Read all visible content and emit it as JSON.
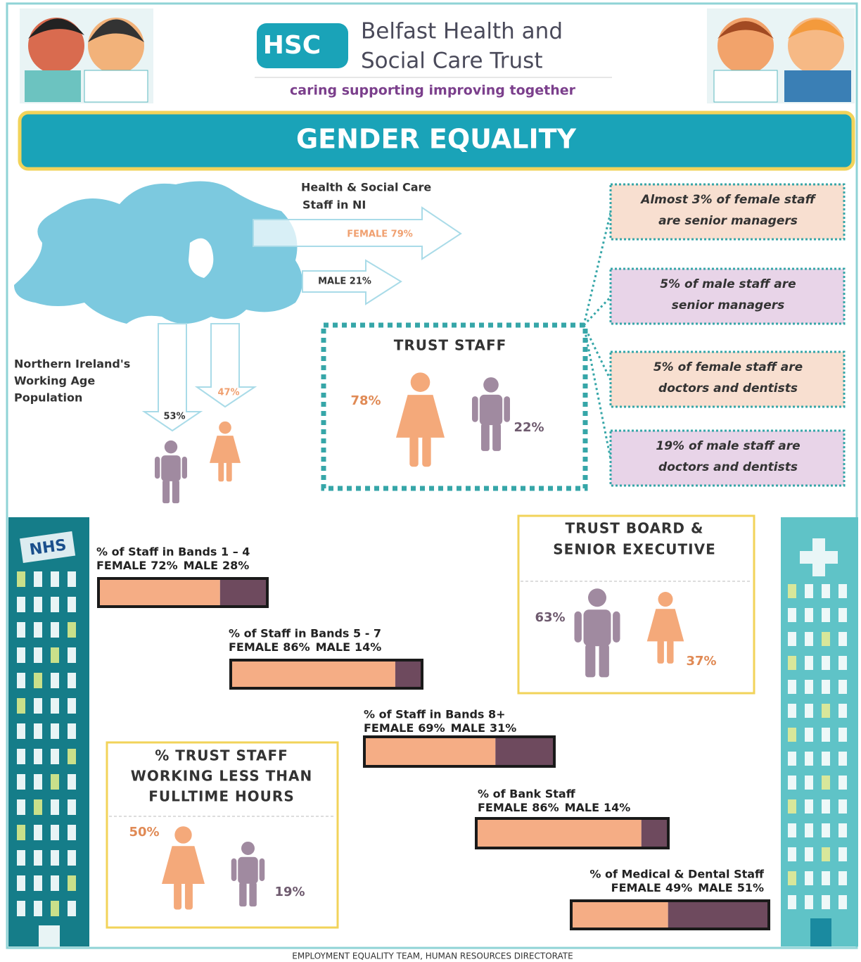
{
  "header": {
    "logo": "HSC",
    "org_line1": "Belfast Health and",
    "org_line2": "Social Care Trust",
    "tagline": "caring supporting improving together"
  },
  "title": "GENDER EQUALITY",
  "ni_staff": {
    "label": [
      "Health & Social Care",
      "Staff in NI"
    ],
    "female": "FEMALE 79%",
    "male": "MALE 21%"
  },
  "population": {
    "label": [
      "Northern Ireland's",
      "Working Age",
      "Population"
    ],
    "male": "53%",
    "female": "47%"
  },
  "trust_staff": {
    "title": "TRUST STAFF",
    "female": "78%",
    "male": "22%"
  },
  "facts": [
    [
      "Almost 3% of female staff",
      "are senior managers"
    ],
    [
      "5% of male staff are",
      "senior managers"
    ],
    [
      "5% of female staff are",
      "doctors and dentists"
    ],
    [
      "19% of male staff are",
      "doctors and dentists"
    ]
  ],
  "bars": [
    {
      "title": "% of Staff in Bands 1 – 4",
      "segments": [
        {
          "name": "FEMALE",
          "value": 72,
          "value_label": "72%"
        },
        {
          "name": "MALE",
          "value": 28,
          "value_label": "28%"
        }
      ]
    },
    {
      "title": "% of Staff in Bands  5 - 7",
      "segments": [
        {
          "name": "FEMALE",
          "value": 86,
          "value_label": "86%"
        },
        {
          "name": "MALE",
          "value": 14,
          "value_label": "14%"
        }
      ]
    },
    {
      "title": "% of Staff in Bands 8+",
      "segments": [
        {
          "name": "FEMALE",
          "value": 69,
          "value_label": "69%"
        },
        {
          "name": "MALE",
          "value": 31,
          "value_label": "31%"
        }
      ]
    },
    {
      "title": "% of Bank Staff",
      "segments": [
        {
          "name": "FEMALE",
          "value": 86,
          "value_label": "86%"
        },
        {
          "name": "MALE",
          "value": 14,
          "value_label": "14%"
        }
      ]
    },
    {
      "title": "% of Medical & Dental Staff",
      "segments": [
        {
          "name": "FEMALE",
          "value": 49,
          "value_label": "49%"
        },
        {
          "name": "MALE",
          "value": 51,
          "value_label": "51%"
        }
      ]
    }
  ],
  "board": {
    "title": [
      "TRUST BOARD &",
      "SENIOR EXECUTIVE"
    ],
    "male": "63%",
    "female": "37%"
  },
  "part_time": {
    "title": [
      "% TRUST STAFF",
      "WORKING LESS THAN",
      "FULLTIME HOURS"
    ],
    "female": "50%",
    "male": "19%"
  },
  "footer": "EMPLOYMENT EQUALITY TEAM, HUMAN RESOURCES DIRECTORATE"
}
